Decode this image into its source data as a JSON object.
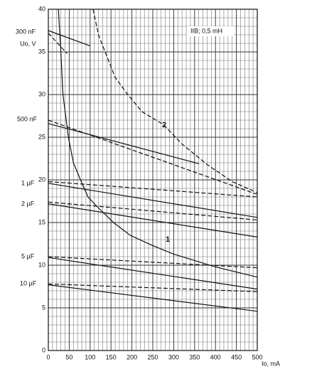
{
  "chart_data": {
    "type": "line",
    "y_label": "Uo, V",
    "x_label": "Io, mA",
    "annotations": [
      "300 nF",
      "500 nF",
      "1 µF",
      "2 µF",
      "5 µF",
      "10 µF",
      "IIB; 0,5 mH",
      "1",
      "2"
    ],
    "xlim": [
      0,
      500
    ],
    "ylim": [
      0,
      40
    ],
    "xticks": [
      0,
      50,
      100,
      150,
      200,
      250,
      300,
      350,
      400,
      450,
      500
    ],
    "yticks": [
      0,
      5,
      10,
      15,
      20,
      25,
      30,
      35,
      40
    ],
    "grid": true,
    "minor_grid": {
      "x": 10,
      "y": 1
    },
    "series": [
      {
        "color": "#111111",
        "dash": false,
        "x": [
          24,
          30,
          35,
          48,
          60,
          77,
          95,
          114,
          135,
          156,
          196,
          250,
          300,
          400,
          500
        ],
        "values": [
          40,
          35,
          30,
          25,
          22,
          20,
          18,
          17,
          16,
          15,
          13.5,
          12.3,
          11.3,
          9.8,
          8.6
        ]
      },
      {
        "color": "#111111",
        "dash": true,
        "x": [
          107,
          120,
          136,
          160,
          190,
          224,
          275,
          320,
          380,
          440,
          500
        ],
        "values": [
          40,
          37,
          35,
          32,
          30,
          28,
          26.5,
          24.2,
          21.8,
          19.8,
          18.5
        ]
      },
      {
        "color": "#111111",
        "dash": false,
        "x": [
          0,
          100
        ],
        "values": [
          37.5,
          35.7
        ]
      },
      {
        "color": "#111111",
        "dash": true,
        "x": [
          0,
          45
        ],
        "values": [
          37.2,
          34.8
        ]
      },
      {
        "color": "#111111",
        "dash": true,
        "x": [
          0,
          500
        ],
        "values": [
          27,
          18.3
        ]
      },
      {
        "color": "#111111",
        "dash": false,
        "x": [
          0,
          360
        ],
        "values": [
          26.6,
          21.9
        ]
      },
      {
        "color": "#111111",
        "dash": true,
        "x": [
          0,
          500
        ],
        "values": [
          19.8,
          18
        ]
      },
      {
        "color": "#111111",
        "dash": false,
        "x": [
          0,
          500
        ],
        "values": [
          19.6,
          15.6
        ]
      },
      {
        "color": "#111111",
        "dash": true,
        "x": [
          0,
          500
        ],
        "values": [
          17.4,
          15.3
        ]
      },
      {
        "color": "#111111",
        "dash": false,
        "x": [
          0,
          500
        ],
        "values": [
          17.2,
          13.3
        ]
      },
      {
        "color": "#111111",
        "dash": true,
        "x": [
          0,
          500
        ],
        "values": [
          11,
          9.7
        ]
      },
      {
        "color": "#111111",
        "dash": false,
        "x": [
          0,
          500
        ],
        "values": [
          10.9,
          7.2
        ]
      },
      {
        "color": "#111111",
        "dash": true,
        "x": [
          0,
          500
        ],
        "values": [
          7.8,
          6.9
        ]
      },
      {
        "color": "#111111",
        "dash": false,
        "x": [
          0,
          500
        ],
        "values": [
          7.7,
          4.6
        ]
      }
    ]
  }
}
